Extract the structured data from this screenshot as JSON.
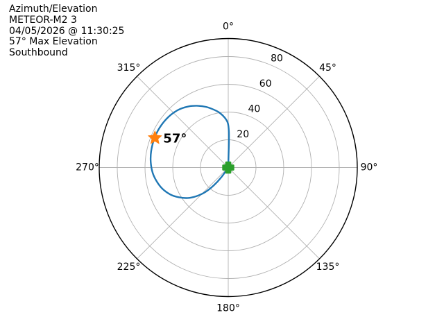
{
  "pass_info": {
    "lines": [
      "Azimuth/Elevation",
      "METEOR-M2 3",
      "04/05/2026 @ 11:30:25",
      "57° Max Elevation",
      "Southbound"
    ]
  },
  "chart_data": {
    "type": "line",
    "subtype": "polar-az-el-pass-plot",
    "title": "Azimuth/Elevation",
    "satellite": "METEOR-M2 3",
    "pass_time": "04/05/2026 @ 11:30:25",
    "max_elevation_deg": 57,
    "heading": "Southbound",
    "azimuth_ticks_deg": [
      0,
      45,
      90,
      135,
      180,
      225,
      270,
      315
    ],
    "azimuth_tick_labels": [
      "0°",
      "45°",
      "90°",
      "135°",
      "180°",
      "225°",
      "270°",
      "315°"
    ],
    "elevation_rings_deg": [
      20,
      40,
      60,
      80
    ],
    "elevation_ring_labels": [
      "20",
      "40",
      "60",
      "80"
    ],
    "elevation_axis": {
      "center_deg": 0,
      "outer_deg": 93,
      "grid": true,
      "legend": "none"
    },
    "track_az_el": [
      [
        1.5,
        0
      ],
      [
        1.5,
        9
      ],
      [
        1.5,
        18
      ],
      [
        1,
        26
      ],
      [
        359.5,
        32
      ],
      [
        356,
        36
      ],
      [
        351,
        40
      ],
      [
        346,
        43
      ],
      [
        340,
        46.5
      ],
      [
        334,
        49.5
      ],
      [
        327,
        52.5
      ],
      [
        319,
        55
      ],
      [
        310,
        56.5
      ],
      [
        300,
        57.2
      ],
      [
        291,
        57.2
      ],
      [
        282,
        56.8
      ],
      [
        274,
        56
      ],
      [
        266,
        54.6
      ],
      [
        259,
        52.5
      ],
      [
        252,
        49.8
      ],
      [
        245,
        46
      ],
      [
        239,
        41.6
      ],
      [
        233,
        36.5
      ],
      [
        228,
        30.8
      ],
      [
        223,
        24
      ],
      [
        219,
        16.5
      ],
      [
        215.5,
        8.5
      ],
      [
        213.5,
        0
      ]
    ],
    "max_marker": {
      "az_deg": 292,
      "el_deg": 57,
      "label": "57°"
    },
    "position_marker": {
      "az_deg": 0,
      "el_deg": 0
    },
    "colors": {
      "track": "#1f77b4",
      "max_marker": "#ff7f0e",
      "position_marker": "#2ca02c",
      "grid": "#b0b0b0",
      "outer_ring": "#000000",
      "text": "#000000"
    }
  }
}
